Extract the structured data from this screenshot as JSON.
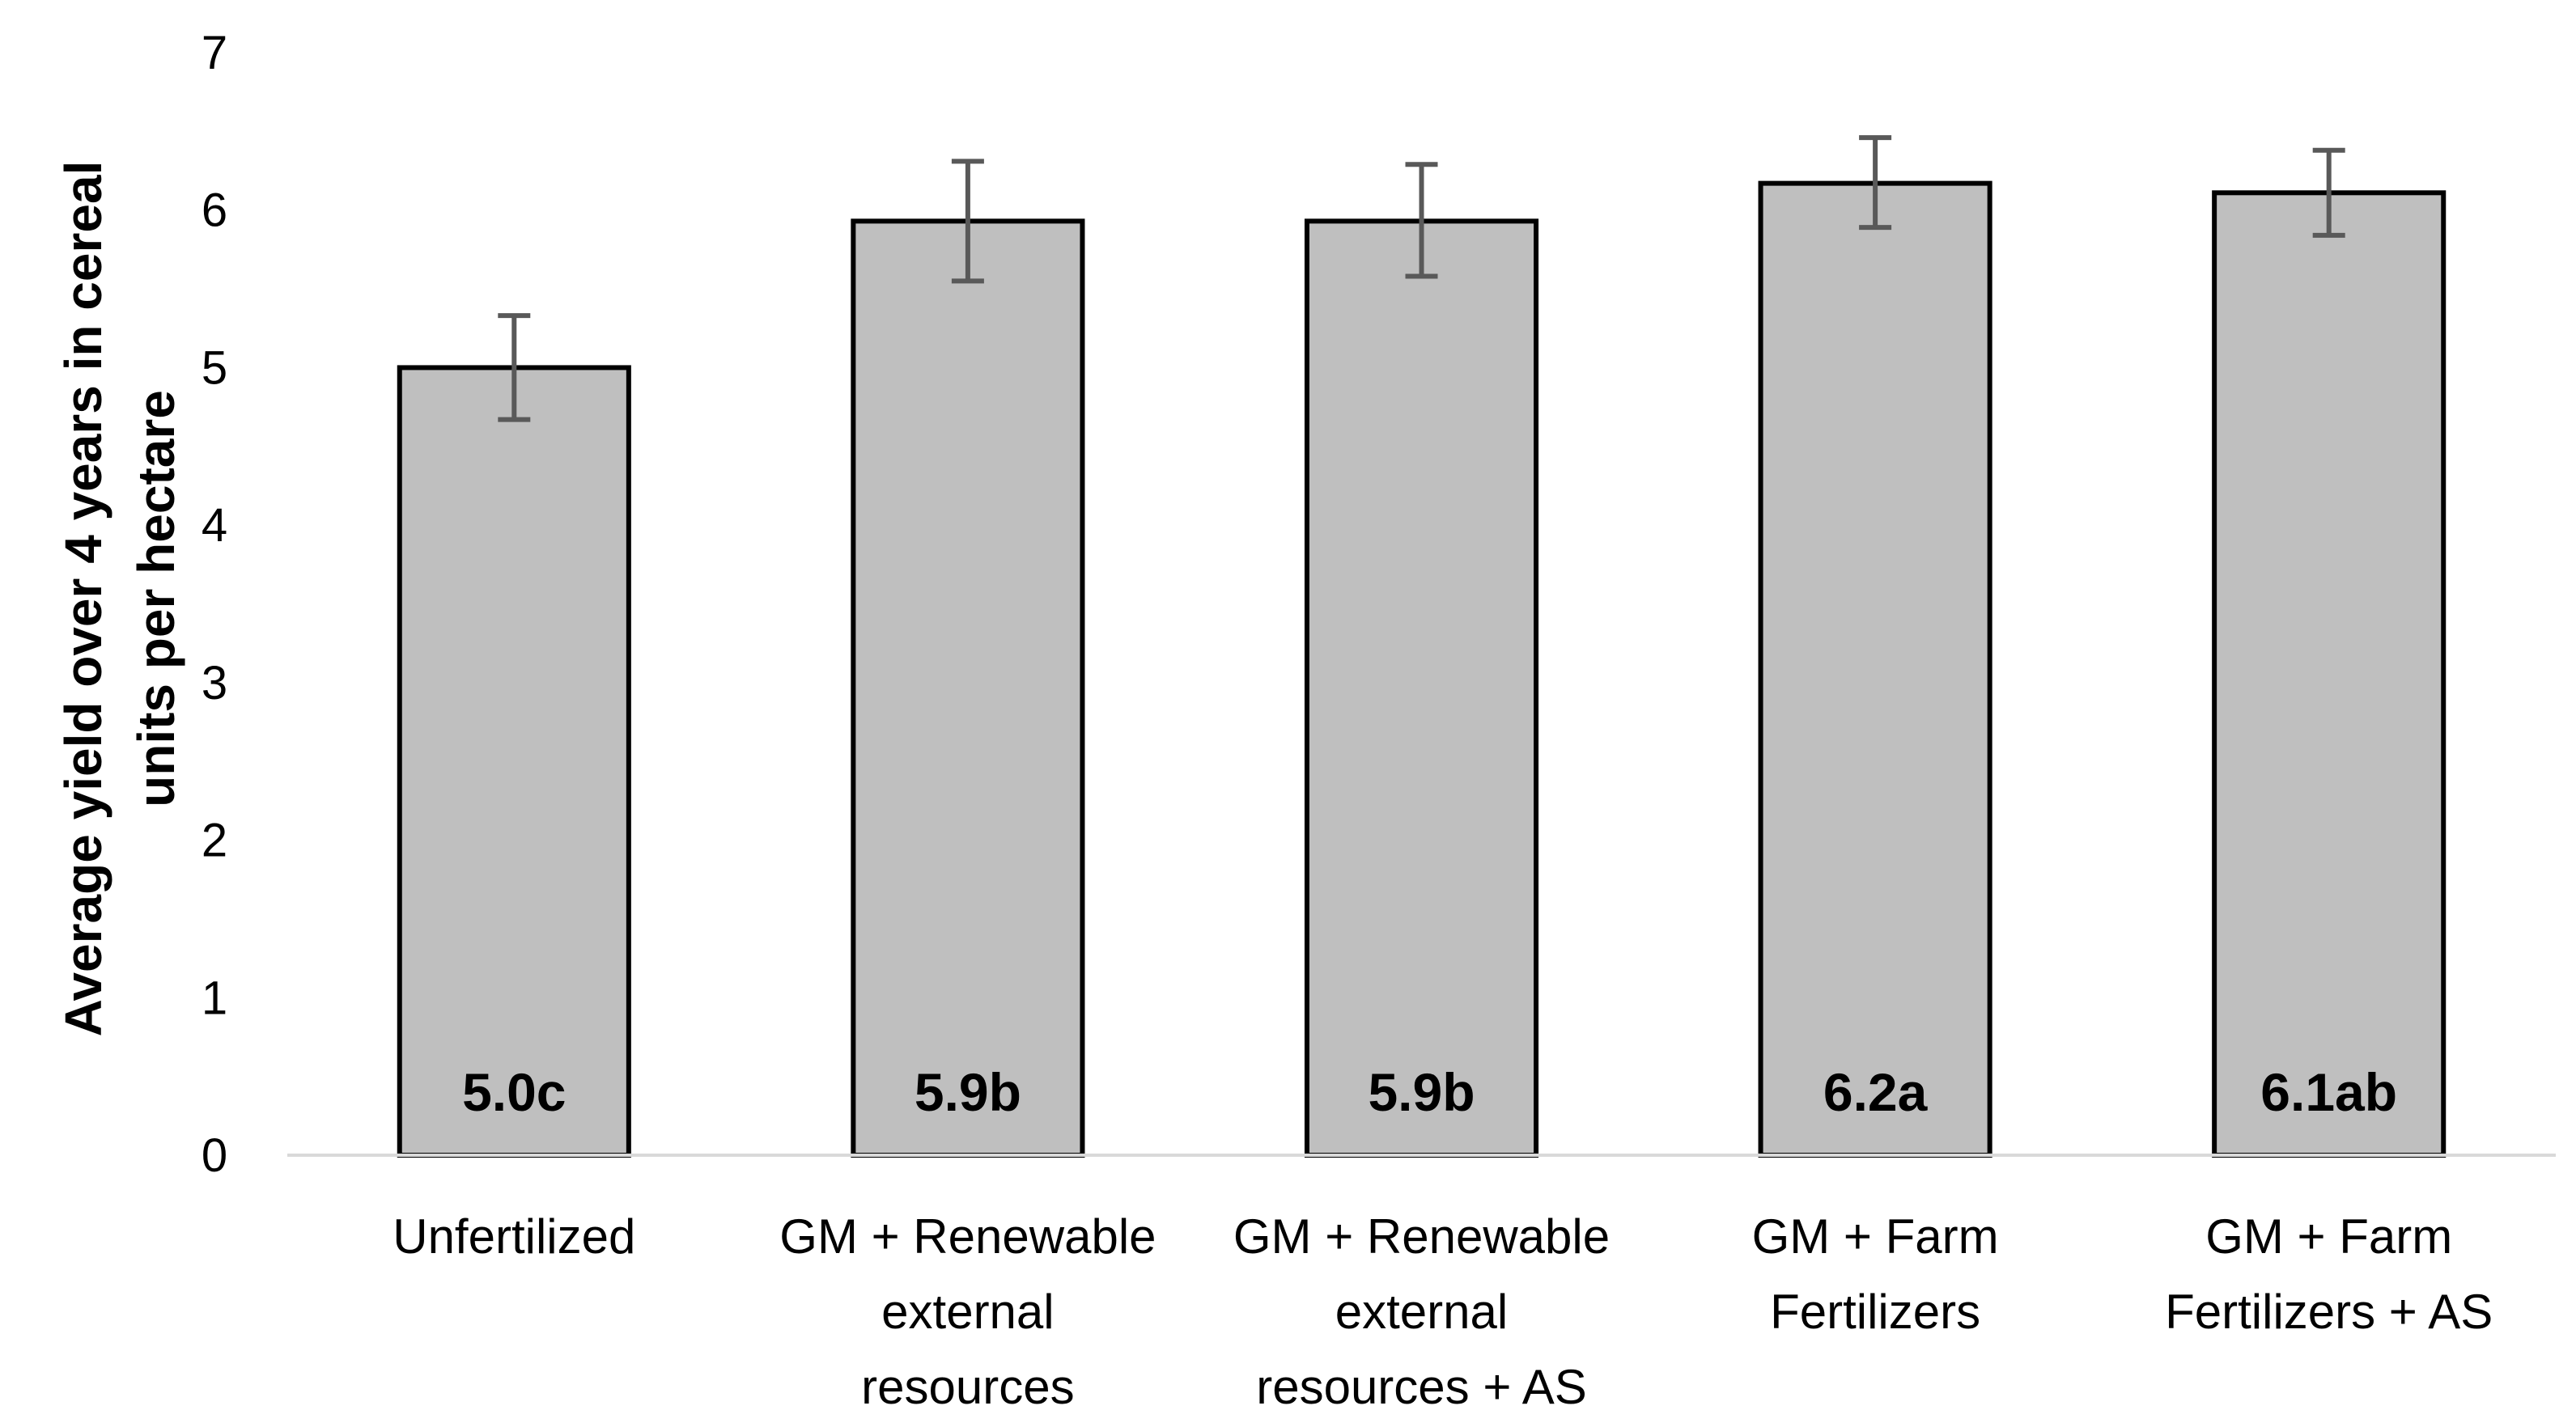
{
  "chart_data": {
    "type": "bar",
    "title": "",
    "xlabel": "",
    "ylabel": "Average yield over 4 years in cereal units per hectare",
    "ylabel_lines": [
      "Average yield over 4 years in cereal",
      "units per hectare"
    ],
    "ylim": [
      0,
      7
    ],
    "yticks": [
      "0",
      "1",
      "2",
      "3",
      "4",
      "5",
      "6",
      "7"
    ],
    "grid": false,
    "legend": "none",
    "categories": [
      [
        "Unfertilized"
      ],
      [
        "GM + Renewable",
        "external",
        "resources"
      ],
      [
        "GM + Renewable",
        "external",
        "resources + AS"
      ],
      [
        "GM + Farm",
        "Fertilizers"
      ],
      [
        "GM + Farm",
        "Fertilizers + AS"
      ]
    ],
    "values": [
      5.0,
      5.93,
      5.93,
      6.17,
      6.11
    ],
    "error_low": [
      4.67,
      5.55,
      5.58,
      5.89,
      5.84
    ],
    "error_high": [
      5.33,
      6.31,
      6.29,
      6.46,
      6.38
    ],
    "data_labels": [
      "5.0c",
      "5.9b",
      "5.9b",
      "6.2a",
      "6.1ab"
    ],
    "colors": {
      "bar_fill": "#bfbfbf",
      "bar_edge": "#000000",
      "error_bar": "#595959",
      "axis": "#d9d9d9",
      "text": "#000000"
    }
  }
}
